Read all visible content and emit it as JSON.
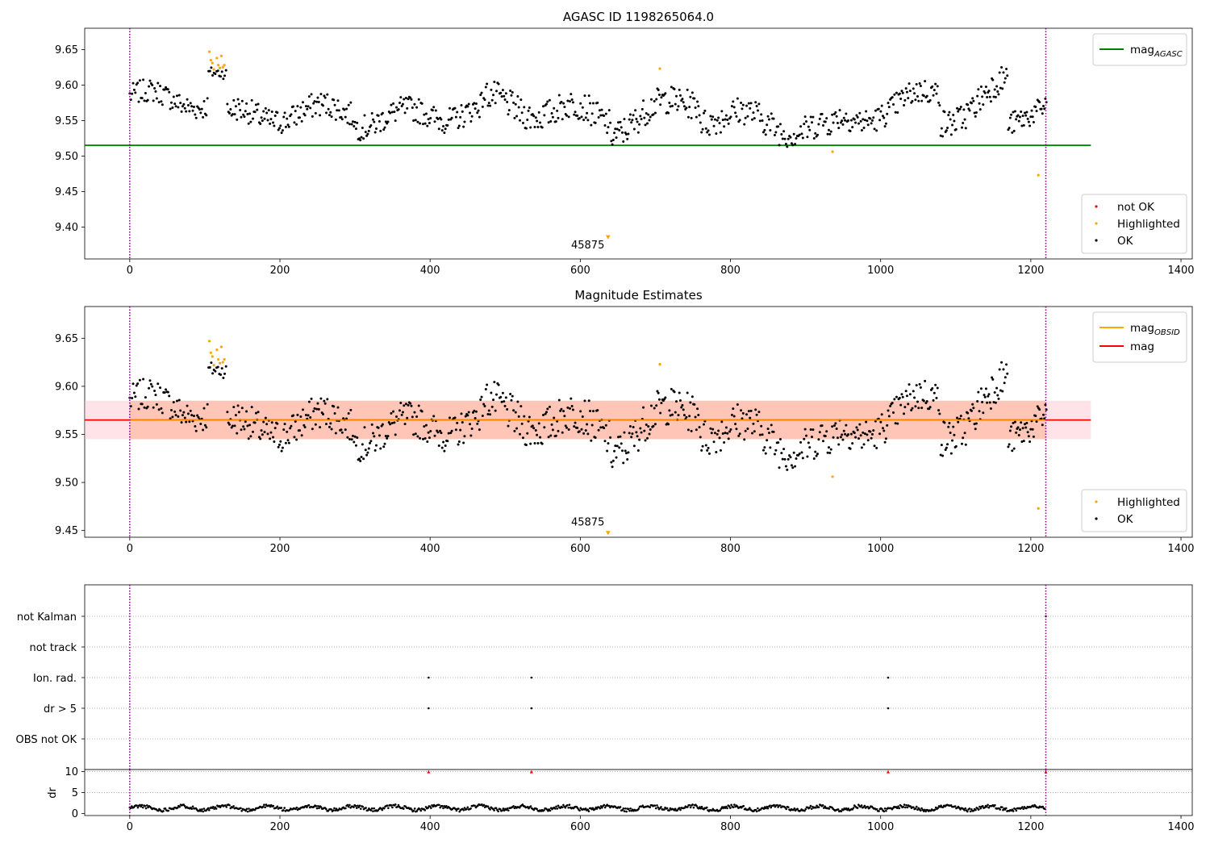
{
  "chart_data": [
    {
      "type": "scatter",
      "title": "AGASC ID 1198265064.0",
      "xlim": [
        -60,
        1415
      ],
      "ylim": [
        9.355,
        9.68
      ],
      "x_ticks": [
        0,
        200,
        400,
        600,
        800,
        1000,
        1200,
        1400
      ],
      "y_ticks": [
        9.4,
        9.45,
        9.5,
        9.55,
        9.6,
        9.65
      ],
      "y_tick_labels": [
        "9.40",
        "9.45",
        "9.50",
        "9.55",
        "9.60",
        "9.65"
      ],
      "vlines": [
        0,
        1220
      ],
      "mag_agasc": 9.515,
      "mag_agasc_x_range": [
        -60,
        1280
      ],
      "annotation": {
        "text": "45875",
        "x": 610,
        "y": 9.37
      },
      "legend_lines": [
        {
          "name": "mag_AGASC",
          "base": "mag",
          "sub": "AGASC",
          "color": "#008000"
        }
      ],
      "legend_points": [
        {
          "name": "not OK",
          "color": "#ff0000"
        },
        {
          "name": "Highlighted",
          "color": "#ffa500"
        },
        {
          "name": "OK",
          "color": "#000000"
        }
      ],
      "highlighted_points": [
        [
          106,
          9.647
        ],
        [
          108,
          9.635
        ],
        [
          110,
          9.631
        ],
        [
          112,
          9.622
        ],
        [
          116,
          9.638
        ],
        [
          118,
          9.628
        ],
        [
          120,
          9.624
        ],
        [
          122,
          9.641
        ],
        [
          124,
          9.625
        ],
        [
          126,
          9.628
        ],
        [
          706,
          9.623
        ],
        [
          936,
          9.506
        ],
        [
          1210,
          9.473
        ]
      ],
      "outlier_points": [
        [
          637,
          9.385,
          "#ffa500"
        ]
      ],
      "ok_segments": [
        {
          "x0": 0,
          "x1": 105,
          "y0": 9.585,
          "y1": 9.575,
          "amp": 0.02,
          "n": 70
        },
        {
          "x0": 105,
          "x1": 130,
          "y0": 9.62,
          "y1": 9.612,
          "amp": 0.01,
          "n": 14
        },
        {
          "x0": 130,
          "x1": 300,
          "y0": 9.555,
          "y1": 9.565,
          "amp": 0.022,
          "n": 120
        },
        {
          "x0": 300,
          "x1": 470,
          "y0": 9.55,
          "y1": 9.565,
          "amp": 0.022,
          "n": 120
        },
        {
          "x0": 470,
          "x1": 640,
          "y0": 9.575,
          "y1": 9.555,
          "amp": 0.025,
          "n": 120
        },
        {
          "x0": 640,
          "x1": 760,
          "y0": 9.54,
          "y1": 9.585,
          "amp": 0.025,
          "n": 90
        },
        {
          "x0": 760,
          "x1": 940,
          "y0": 9.56,
          "y1": 9.535,
          "amp": 0.025,
          "n": 120
        },
        {
          "x0": 940,
          "x1": 1080,
          "y0": 9.545,
          "y1": 9.59,
          "amp": 0.022,
          "n": 100
        },
        {
          "x0": 1080,
          "x1": 1170,
          "y0": 9.55,
          "y1": 9.6,
          "amp": 0.025,
          "n": 70
        },
        {
          "x0": 1170,
          "x1": 1222,
          "y0": 9.535,
          "y1": 9.585,
          "amp": 0.02,
          "n": 40
        }
      ]
    },
    {
      "type": "scatter",
      "title": "Magnitude Estimates",
      "xlim": [
        -60,
        1415
      ],
      "ylim": [
        9.443,
        9.683
      ],
      "x_ticks": [
        0,
        200,
        400,
        600,
        800,
        1000,
        1200,
        1400
      ],
      "y_ticks": [
        9.45,
        9.5,
        9.55,
        9.6,
        9.65
      ],
      "y_tick_labels": [
        "9.45",
        "9.50",
        "9.55",
        "9.60",
        "9.65"
      ],
      "vlines": [
        0,
        1220
      ],
      "mag": 9.565,
      "mag_band": [
        9.545,
        9.585
      ],
      "mag_x_range": [
        -60,
        1280
      ],
      "mag_obsid_value": 9.565,
      "mag_obsid_band": [
        9.545,
        9.585
      ],
      "mag_obsid_x_range": [
        0,
        1220
      ],
      "annotation": {
        "text": "45875",
        "x": 610,
        "y": 9.455
      },
      "legend_lines": [
        {
          "name": "mag_OBSID",
          "base": "mag",
          "sub": "OBSID",
          "color": "#ffa500"
        },
        {
          "name": "mag",
          "base": "mag",
          "sub": "",
          "color": "#ff0000"
        }
      ],
      "legend_points": [
        {
          "name": "Highlighted",
          "color": "#ffa500"
        },
        {
          "name": "OK",
          "color": "#000000"
        }
      ],
      "highlighted_points": [
        [
          106,
          9.647
        ],
        [
          108,
          9.635
        ],
        [
          110,
          9.631
        ],
        [
          112,
          9.622
        ],
        [
          116,
          9.638
        ],
        [
          118,
          9.628
        ],
        [
          120,
          9.624
        ],
        [
          122,
          9.641
        ],
        [
          124,
          9.625
        ],
        [
          126,
          9.628
        ],
        [
          706,
          9.623
        ],
        [
          936,
          9.506
        ],
        [
          1210,
          9.473
        ]
      ],
      "outlier_points": [
        [
          637,
          9.447,
          "#ffa500"
        ]
      ],
      "ok_segments": [
        {
          "x0": 0,
          "x1": 105,
          "y0": 9.585,
          "y1": 9.575,
          "amp": 0.02,
          "n": 70
        },
        {
          "x0": 105,
          "x1": 130,
          "y0": 9.62,
          "y1": 9.612,
          "amp": 0.01,
          "n": 14
        },
        {
          "x0": 130,
          "x1": 300,
          "y0": 9.555,
          "y1": 9.565,
          "amp": 0.022,
          "n": 120
        },
        {
          "x0": 300,
          "x1": 470,
          "y0": 9.55,
          "y1": 9.565,
          "amp": 0.022,
          "n": 120
        },
        {
          "x0": 470,
          "x1": 640,
          "y0": 9.575,
          "y1": 9.555,
          "amp": 0.025,
          "n": 120
        },
        {
          "x0": 640,
          "x1": 760,
          "y0": 9.54,
          "y1": 9.585,
          "amp": 0.025,
          "n": 90
        },
        {
          "x0": 760,
          "x1": 940,
          "y0": 9.56,
          "y1": 9.535,
          "amp": 0.025,
          "n": 120
        },
        {
          "x0": 940,
          "x1": 1080,
          "y0": 9.545,
          "y1": 9.59,
          "amp": 0.022,
          "n": 100
        },
        {
          "x0": 1080,
          "x1": 1170,
          "y0": 9.55,
          "y1": 9.6,
          "amp": 0.025,
          "n": 70
        },
        {
          "x0": 1170,
          "x1": 1222,
          "y0": 9.535,
          "y1": 9.585,
          "amp": 0.02,
          "n": 40
        }
      ]
    },
    {
      "type": "scatter",
      "title": "",
      "xlim": [
        -60,
        1415
      ],
      "categories": [
        "not Kalman",
        "not track",
        "Ion. rad.",
        "dr > 5",
        "OBS not OK"
      ],
      "vlines": [
        0,
        1220
      ],
      "flag_points": [
        {
          "category": "not Kalman",
          "x": 1220
        },
        {
          "category": "Ion. rad.",
          "x": 398
        },
        {
          "category": "Ion. rad.",
          "x": 535
        },
        {
          "category": "Ion. rad.",
          "x": 1010
        },
        {
          "category": "dr > 5",
          "x": 398
        },
        {
          "category": "dr > 5",
          "x": 535
        },
        {
          "category": "dr > 5",
          "x": 1010
        }
      ]
    },
    {
      "type": "scatter",
      "title": "",
      "xlim": [
        -60,
        1415
      ],
      "ylim": [
        -0.5,
        10.5
      ],
      "ylabel": "dr",
      "x_ticks": [
        0,
        200,
        400,
        600,
        800,
        1000,
        1200,
        1400
      ],
      "y_ticks": [
        0,
        5,
        10
      ],
      "y_tick_labels": [
        "0",
        "5",
        "10"
      ],
      "vlines": [
        0,
        1220
      ],
      "dr_threshold_markers": [
        [
          398,
          10
        ],
        [
          535,
          10
        ],
        [
          1010,
          10
        ],
        [
          1220,
          10
        ]
      ],
      "dr_baseline": {
        "x0": 0,
        "x1": 1220,
        "mean": 1.3,
        "amp": 0.8,
        "n": 900
      }
    }
  ]
}
